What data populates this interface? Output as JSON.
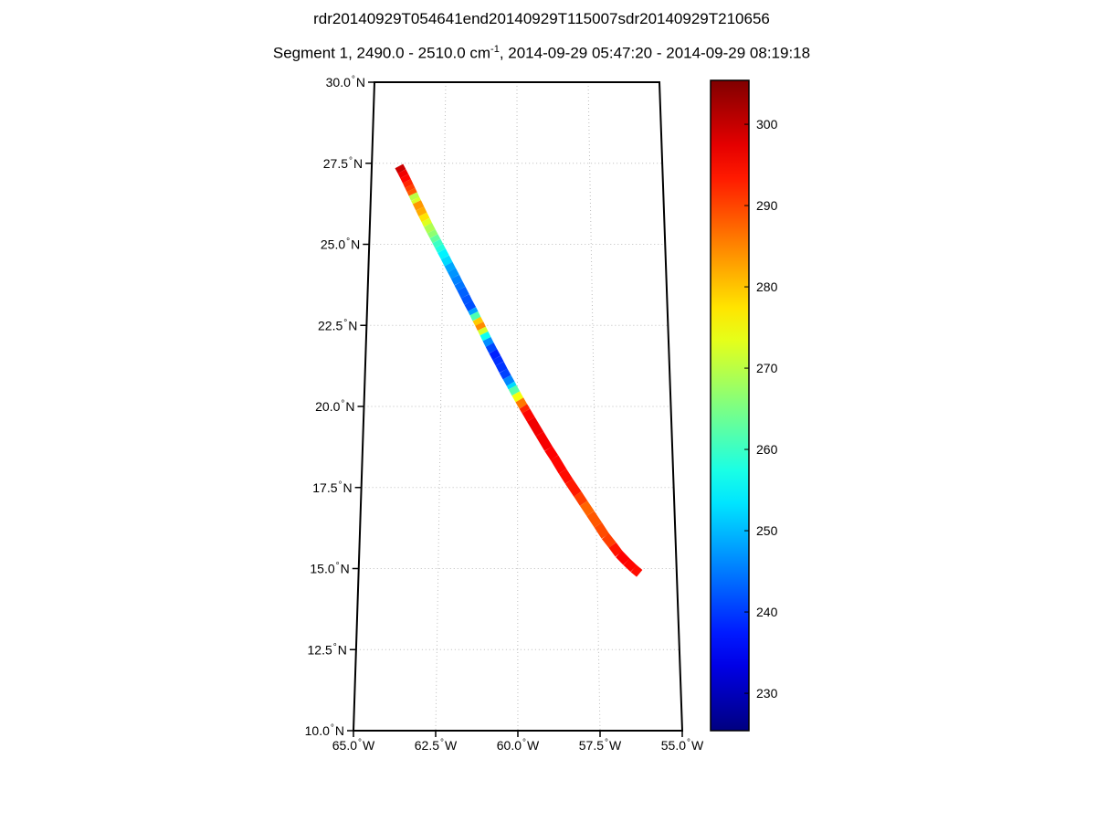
{
  "titles": {
    "line1": "rdr20140929T054641end20140929T115007sdr20140929T210656",
    "line2_pre": "Segment 1, 2490.0 - 2510.0 cm",
    "line2_sup": "-1",
    "line2_post": ", 2014-09-29 05:47:20 - 2014-09-29 08:19:18"
  },
  "chart_data": {
    "type": "scatter",
    "subtype": "satellite-swath-map",
    "title": "rdr20140929T054641end20140929T115007sdr20140929T210656",
    "subtitle": "Segment 1, 2490.0 - 2510.0 cm^-1, 2014-09-29 05:47:20 - 2014-09-29 08:19:18",
    "degree_symbol": "°",
    "x_axis": {
      "ticks": [
        "65.0",
        "62.5",
        "60.0",
        "57.5",
        "55.0"
      ],
      "hemisphere": "W",
      "range_degW": [
        65.0,
        55.0
      ]
    },
    "y_axis": {
      "ticks": [
        "30.0",
        "27.5",
        "25.0",
        "22.5",
        "20.0",
        "17.5",
        "15.0",
        "12.5",
        "10.0"
      ],
      "hemisphere": "N",
      "range_degN": [
        10.0,
        30.0
      ]
    },
    "grid": {
      "style": "dotted",
      "lat_lines": [
        27.5,
        25.0,
        22.5,
        20.0,
        17.5,
        15.0,
        12.5
      ],
      "lon_lines": [
        62.5,
        60.0,
        57.5
      ]
    },
    "colorbar": {
      "colormap": "jet",
      "orientation": "vertical",
      "value_min": 225.4,
      "value_max": 305.4,
      "ticks": [
        230,
        240,
        250,
        260,
        270,
        280,
        290,
        300
      ]
    },
    "swath": {
      "name": "satellite-ground-track-brightness-values",
      "point_format": [
        "lat_degN",
        "lon_degW",
        "value"
      ],
      "points": [
        [
          27.41,
          64.06,
          299
        ],
        [
          27.25,
          63.96,
          300
        ],
        [
          27.1,
          63.87,
          293
        ],
        [
          26.95,
          63.78,
          297
        ],
        [
          26.8,
          63.7,
          288
        ],
        [
          26.68,
          63.63,
          293
        ],
        [
          26.55,
          63.56,
          284
        ],
        [
          26.4,
          63.48,
          256
        ],
        [
          26.3,
          63.42,
          289
        ],
        [
          26.1,
          63.31,
          278
        ],
        [
          25.92,
          63.21,
          286
        ],
        [
          25.75,
          63.11,
          269
        ],
        [
          25.6,
          63.03,
          277
        ],
        [
          25.4,
          62.91,
          261
        ],
        [
          25.25,
          62.82,
          272
        ],
        [
          25.1,
          62.73,
          254
        ],
        [
          24.95,
          62.64,
          266
        ],
        [
          24.8,
          62.55,
          250
        ],
        [
          24.6,
          62.43,
          259
        ],
        [
          24.39,
          62.31,
          246
        ],
        [
          24.2,
          62.2,
          251
        ],
        [
          24.0,
          62.08,
          243
        ],
        [
          23.8,
          61.97,
          248
        ],
        [
          23.63,
          61.87,
          241
        ],
        [
          23.4,
          61.74,
          245
        ],
        [
          23.2,
          61.63,
          239
        ],
        [
          23.0,
          61.51,
          244
        ],
        [
          22.87,
          61.44,
          252
        ],
        [
          22.7,
          61.35,
          271
        ],
        [
          22.55,
          61.26,
          288
        ],
        [
          22.4,
          61.18,
          281
        ],
        [
          22.25,
          61.1,
          263
        ],
        [
          22.08,
          61.01,
          250
        ],
        [
          21.9,
          60.91,
          243
        ],
        [
          21.7,
          60.8,
          239
        ],
        [
          21.5,
          60.68,
          237
        ],
        [
          21.32,
          60.58,
          241
        ],
        [
          21.1,
          60.46,
          238
        ],
        [
          20.9,
          60.34,
          243
        ],
        [
          20.7,
          60.22,
          249
        ],
        [
          20.59,
          60.16,
          256
        ],
        [
          20.4,
          60.05,
          268
        ],
        [
          20.2,
          59.93,
          281
        ],
        [
          20.0,
          59.81,
          291
        ],
        [
          19.86,
          59.72,
          294
        ],
        [
          19.6,
          59.56,
          296
        ],
        [
          19.15,
          59.28,
          297
        ],
        [
          18.7,
          59.0,
          295
        ],
        [
          18.42,
          58.81,
          296
        ],
        [
          18.0,
          58.55,
          294
        ],
        [
          17.69,
          58.35,
          295
        ],
        [
          17.3,
          58.08,
          292
        ],
        [
          17.01,
          57.89,
          289
        ],
        [
          16.7,
          57.68,
          286
        ],
        [
          16.34,
          57.44,
          291
        ],
        [
          16.0,
          57.22,
          288
        ],
        [
          15.72,
          57.0,
          293
        ],
        [
          15.45,
          56.8,
          295
        ],
        [
          15.21,
          56.57,
          296
        ],
        [
          15.0,
          56.35,
          294
        ],
        [
          14.85,
          56.17,
          295
        ]
      ]
    }
  }
}
